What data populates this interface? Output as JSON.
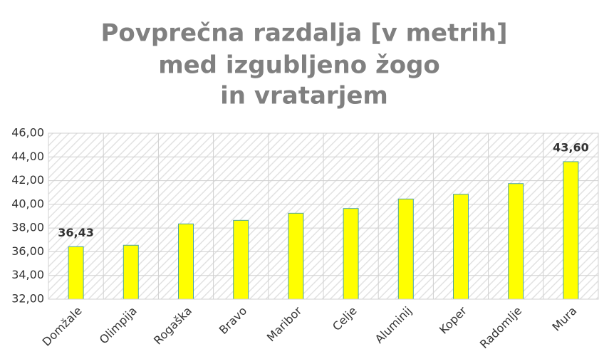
{
  "chart_data": {
    "type": "bar",
    "title": [
      "Povprečna razdalja [v metrih]",
      "med izgubljeno žogo",
      "in vratarjem"
    ],
    "categories": [
      "Domžale",
      "Olimpija",
      "Rogaška",
      "Bravo",
      "Maribor",
      "Celje",
      "Aluminij",
      "Koper",
      "Radomlje",
      "Mura"
    ],
    "values": [
      36.43,
      36.55,
      38.35,
      38.65,
      39.25,
      39.65,
      40.45,
      40.85,
      41.75,
      43.6
    ],
    "value_labels": [
      "36,43",
      null,
      null,
      null,
      null,
      null,
      null,
      null,
      null,
      "43,60"
    ],
    "color": "#ffff00",
    "ylim": [
      32,
      46
    ],
    "yticks": [
      {
        "value": 32,
        "label": "32,00"
      },
      {
        "value": 34,
        "label": "34,00"
      },
      {
        "value": 36,
        "label": "36,00"
      },
      {
        "value": 38,
        "label": "38,00"
      },
      {
        "value": 40,
        "label": "40,00"
      },
      {
        "value": 42,
        "label": "42,00"
      },
      {
        "value": 44,
        "label": "44,00"
      },
      {
        "value": 46,
        "label": "46,00"
      }
    ],
    "grid": true
  }
}
